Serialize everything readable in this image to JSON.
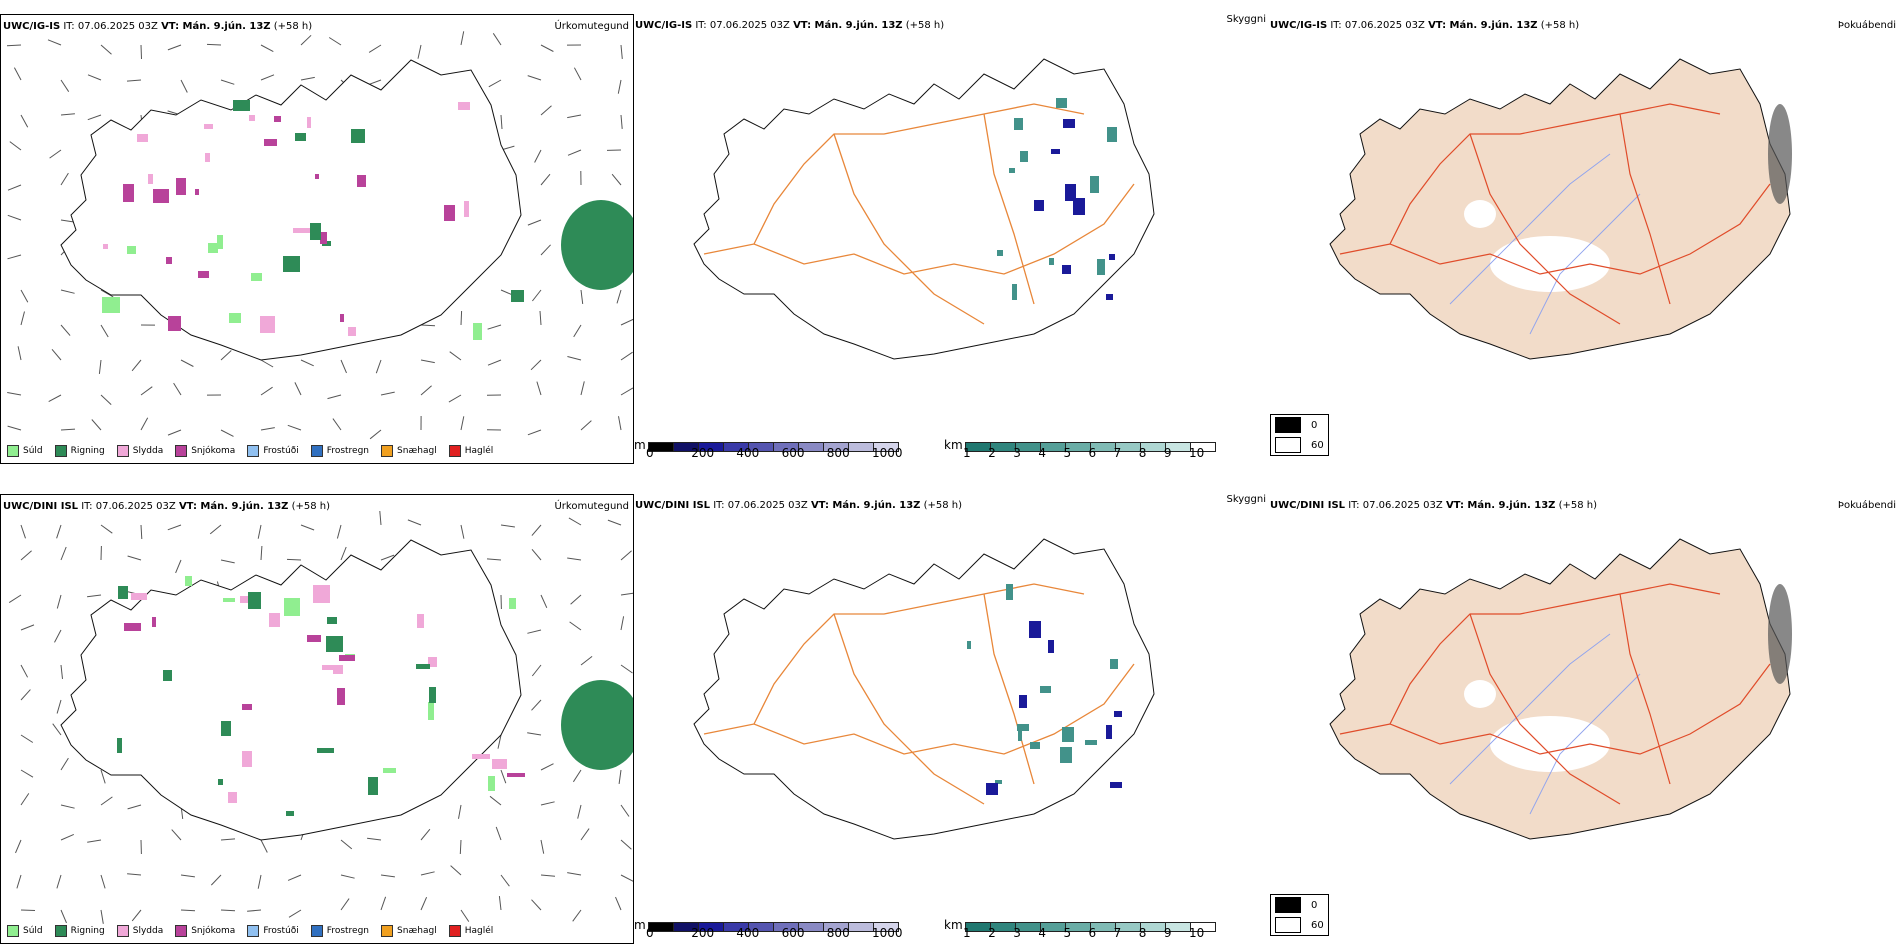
{
  "rows": [
    {
      "id": "top",
      "precip": {
        "model": "UWC/IG-IS",
        "it": "IT: 07.06.2025 03Z",
        "vt": "VT: Mán. 9.jún. 13Z",
        "lead": "(+58 h)",
        "label": "Úrkomutegund"
      },
      "sky": {
        "model": "UWC/IG-IS",
        "it": "IT: 07.06.2025 03Z",
        "vt": "VT: Mán. 9.jún. 13Z",
        "lead": "(+58 h)",
        "label": "Skyggni"
      },
      "fog": {
        "model": "UWC/IG-IS",
        "it": "IT: 07.06.2025 03Z",
        "vt": "VT: Mán. 9.jún. 13Z",
        "lead": "(+58 h)",
        "label": "Þokuábendi"
      }
    },
    {
      "id": "bottom",
      "precip": {
        "model": "UWC/DINI ISL",
        "it": "IT: 07.06.2025 03Z",
        "vt": "VT: Mán. 9.jún. 13Z",
        "lead": "(+58 h)",
        "label": "Úrkomutegund"
      },
      "sky": {
        "model": "UWC/DINI ISL",
        "it": "IT: 07.06.2025 03Z",
        "vt": "VT: Mán. 9.jún. 13Z",
        "lead": "(+58 h)",
        "label": "Skyggni"
      },
      "fog": {
        "model": "UWC/DINI ISL",
        "it": "IT: 07.06.2025 03Z",
        "vt": "VT: Mán. 9.jún. 13Z",
        "lead": "(+58 h)",
        "label": "Þokuábendi"
      }
    }
  ],
  "precip_legend": [
    {
      "label": "Súld",
      "color": "#90ee90"
    },
    {
      "label": "Rigning",
      "color": "#2e8b57"
    },
    {
      "label": "Slydda",
      "color": "#f0a8d8"
    },
    {
      "label": "Snjókoma",
      "color": "#b8429a"
    },
    {
      "label": "Frostúði",
      "color": "#90c0f0"
    },
    {
      "label": "Frostregn",
      "color": "#3070c0"
    },
    {
      "label": "Snæhagl",
      "color": "#f0a020"
    },
    {
      "label": "Haglél",
      "color": "#e02020"
    }
  ],
  "ceiling_scale": {
    "unit": "m",
    "labels": [
      "0",
      "200",
      "400",
      "600",
      "800",
      "1000"
    ],
    "colors": [
      "#000000",
      "#111166",
      "#1a1a99",
      "#3a3aa8",
      "#5555b0",
      "#7070bb",
      "#8a8ac4",
      "#a4a4d0",
      "#bcbcdc",
      "#d4d4ea"
    ]
  },
  "visibility_scale": {
    "unit": "km",
    "labels": [
      "1",
      "2",
      "3",
      "4",
      "5",
      "6",
      "7",
      "8",
      "9",
      "10"
    ],
    "colors": [
      "#207870",
      "#30857d",
      "#42928a",
      "#559f98",
      "#6aada6",
      "#80bbb5",
      "#97c9c4",
      "#afd7d3",
      "#c8e5e2",
      "#ffffff"
    ]
  },
  "fog_scale": {
    "labels": [
      "0",
      "60"
    ],
    "colors": [
      "#000000",
      "#ffffff"
    ]
  }
}
